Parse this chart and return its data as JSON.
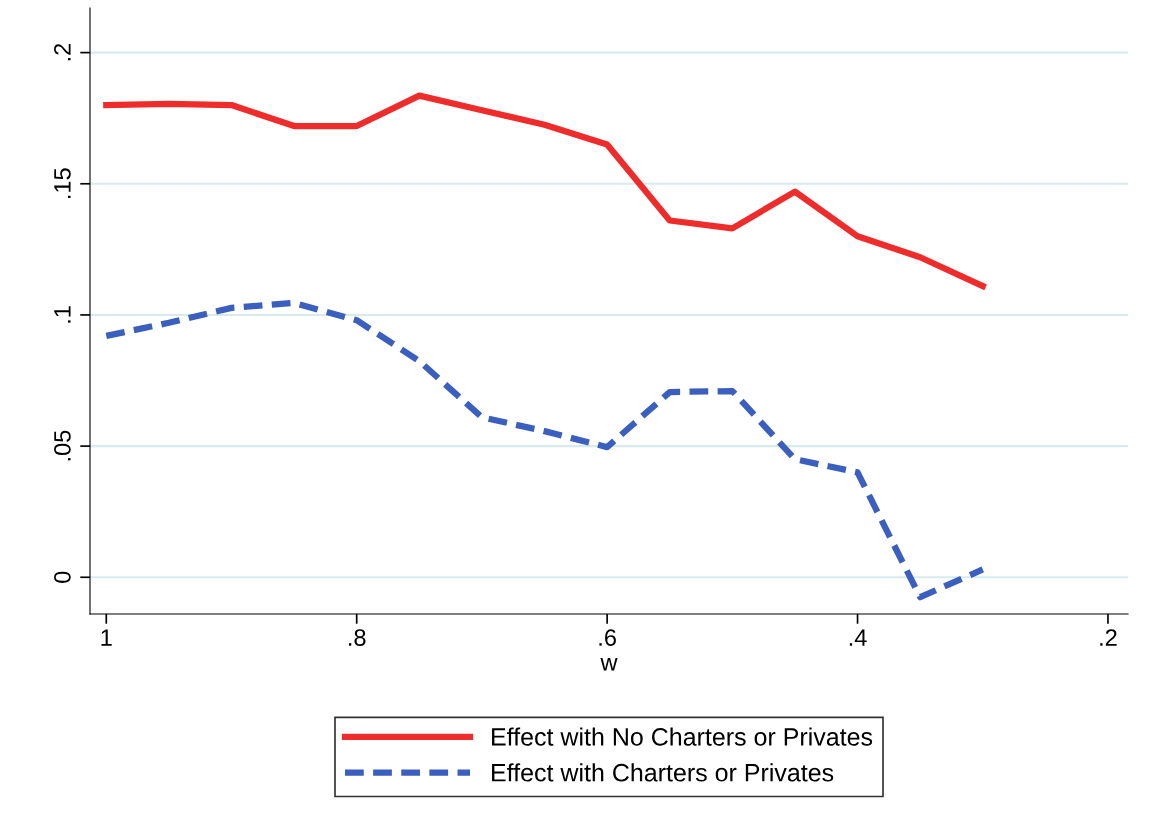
{
  "chart_data": {
    "type": "line",
    "xlabel": "w",
    "x": [
      1,
      0.95,
      0.9,
      0.85,
      0.8,
      0.75,
      0.7,
      0.65,
      0.6,
      0.55,
      0.5,
      0.45,
      0.4,
      0.35,
      0.3
    ],
    "series": [
      {
        "name": "Effect with No Charters or Privates",
        "color": "#ee2c2c",
        "line_style": "solid",
        "values": [
          0.18,
          0.1805,
          0.18,
          0.172,
          0.172,
          0.1836,
          0.178,
          0.1725,
          0.165,
          0.136,
          0.133,
          0.147,
          0.13,
          0.122,
          0.111
        ]
      },
      {
        "name": "Effect with Charters or Privates",
        "color": "#3a5fbf",
        "line_style": "dashed",
        "values": [
          0.092,
          0.097,
          0.1027,
          0.1046,
          0.098,
          0.0824,
          0.061,
          0.0557,
          0.0496,
          0.0706,
          0.071,
          0.045,
          0.04,
          -0.0076,
          0.003
        ]
      }
    ],
    "xlim": [
      1.013,
      0.184
    ],
    "ylim": [
      -0.014,
      0.217
    ],
    "xticks": [
      {
        "value": 1,
        "label": "1"
      },
      {
        "value": 0.8,
        "label": ".8"
      },
      {
        "value": 0.6,
        "label": ".6"
      },
      {
        "value": 0.4,
        "label": ".4"
      },
      {
        "value": 0.2,
        "label": ".2"
      }
    ],
    "yticks": [
      {
        "value": 0,
        "label": "0"
      },
      {
        "value": 0.05,
        "label": ".05"
      },
      {
        "value": 0.1,
        "label": ".1"
      },
      {
        "value": 0.15,
        "label": ".15"
      },
      {
        "value": 0.2,
        "label": ".2"
      }
    ],
    "grid": "y",
    "legend": "bottom",
    "marker": "none"
  }
}
